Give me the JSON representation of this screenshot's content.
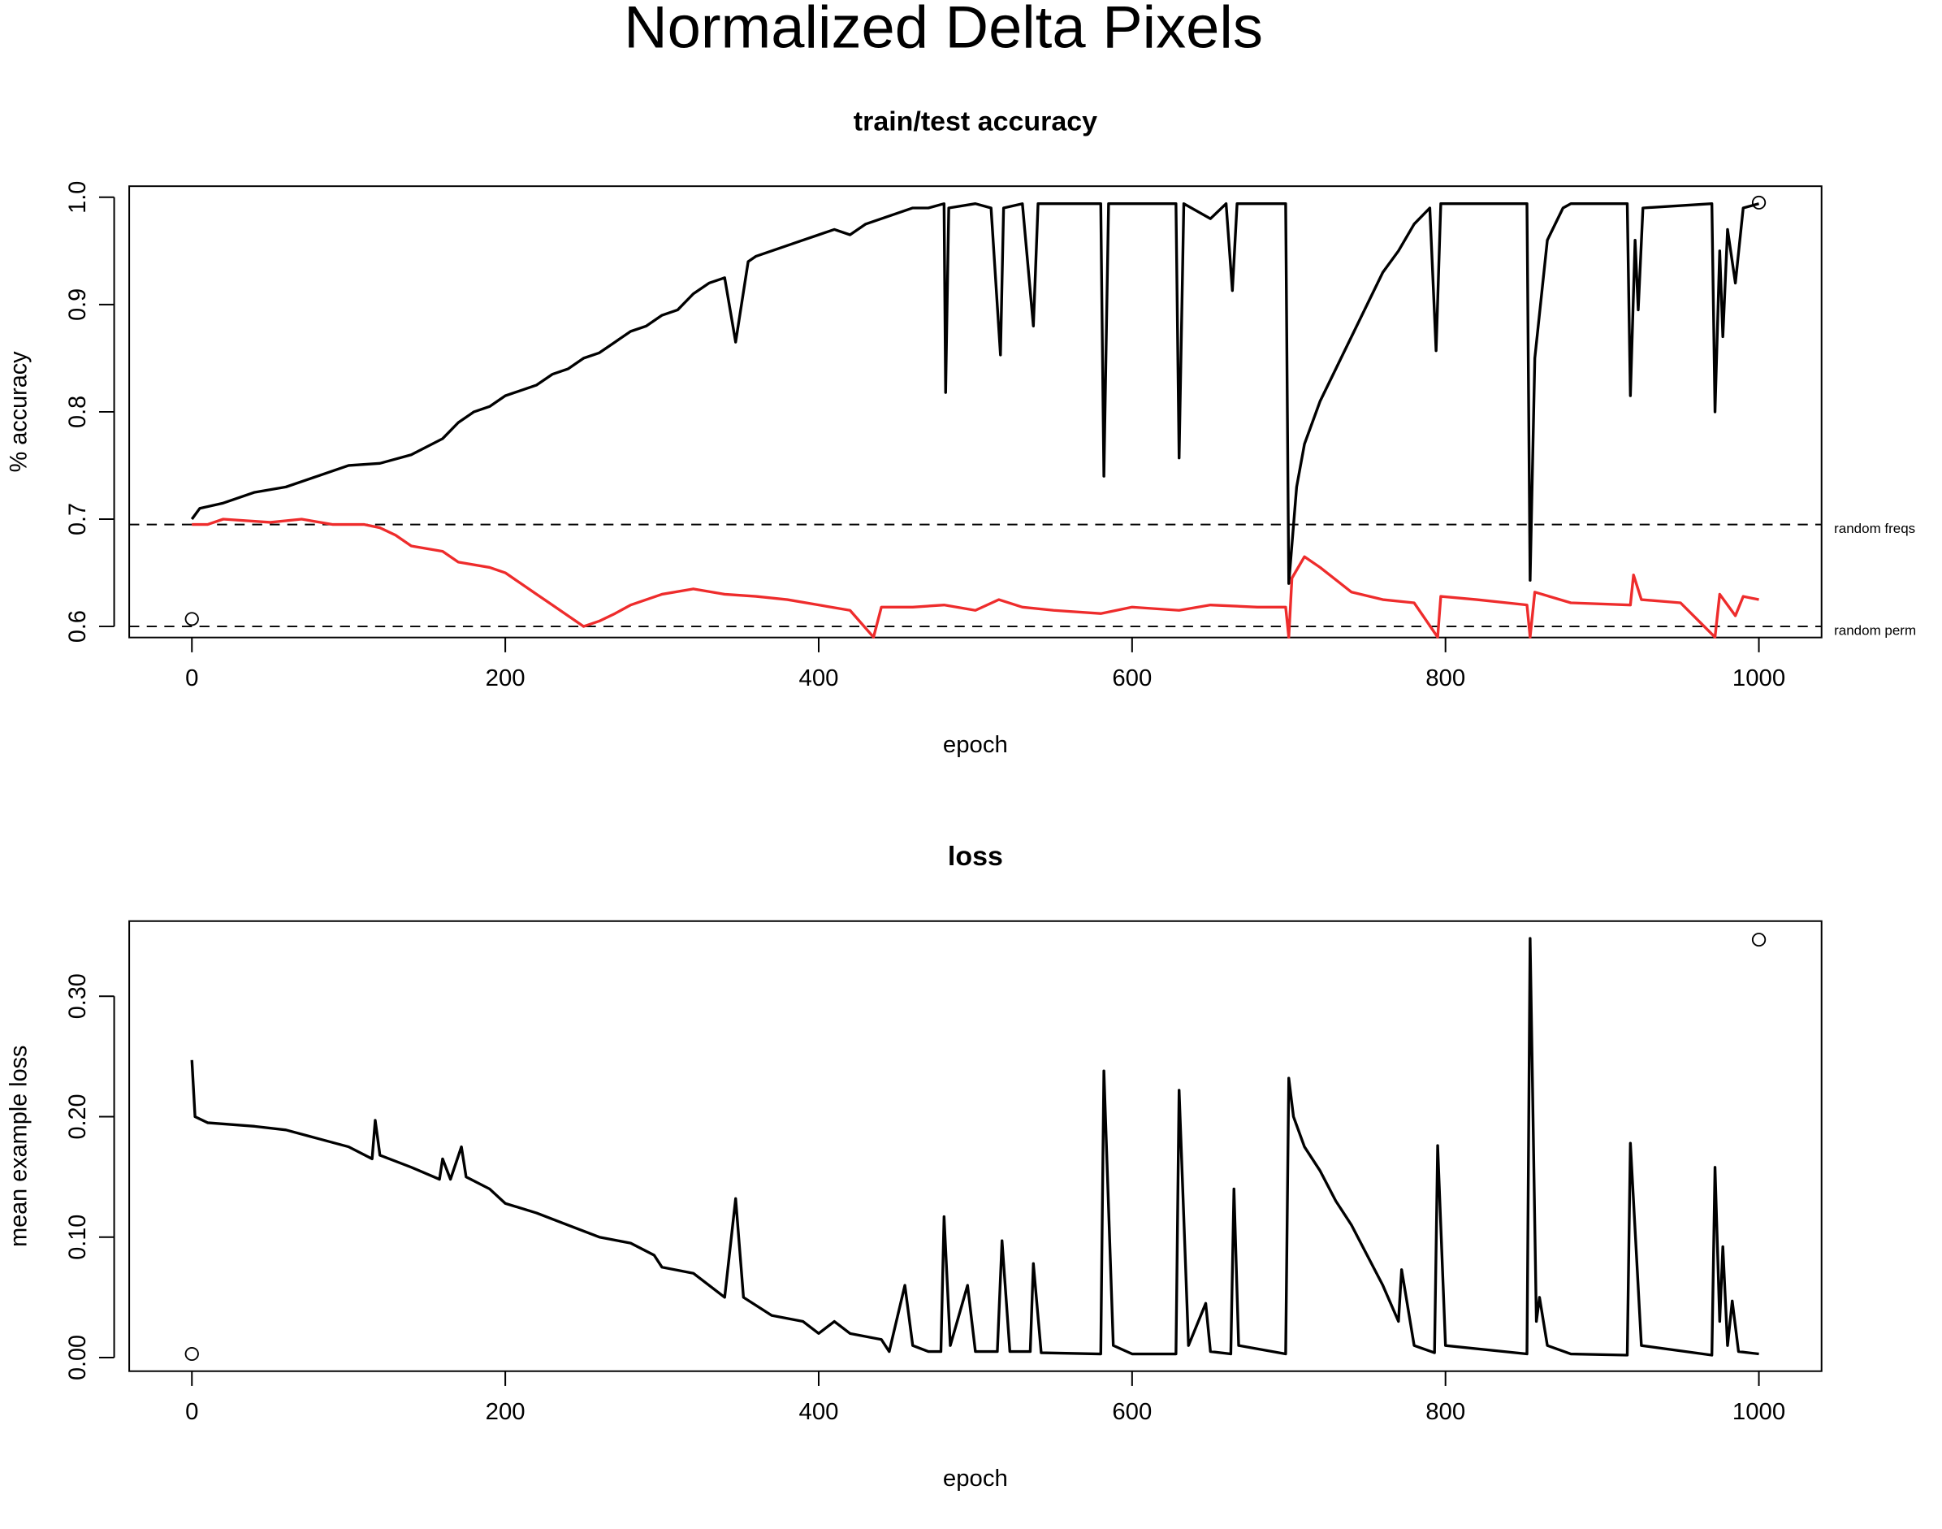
{
  "title": "Normalized Delta Pixels",
  "chart_data": [
    {
      "type": "line",
      "title": "train/test accuracy",
      "xlabel": "epoch",
      "ylabel": "% accuracy",
      "xlim": [
        -40,
        1040
      ],
      "ylim": [
        0.5897,
        1.0103
      ],
      "xticks": [
        0,
        200,
        400,
        600,
        800,
        1000
      ],
      "yticks": [
        0.6,
        0.7,
        0.8,
        0.9,
        {
          "value": 1.0,
          "label": "1.0"
        }
      ],
      "hlines": [
        {
          "value": 0.695,
          "label": "random freqs"
        },
        {
          "value": 0.6,
          "label": "random perm"
        }
      ],
      "points": {
        "x": [
          0,
          1000
        ],
        "y": [
          0.607,
          0.995
        ]
      },
      "series": [
        {
          "color": "#000000",
          "x": [
            0,
            5,
            20,
            40,
            60,
            80,
            100,
            120,
            140,
            160,
            170,
            180,
            190,
            200,
            210,
            220,
            230,
            240,
            250,
            260,
            270,
            280,
            290,
            300,
            310,
            320,
            330,
            340,
            347,
            355,
            360,
            370,
            380,
            390,
            400,
            410,
            420,
            430,
            440,
            450,
            460,
            470,
            480,
            481,
            483,
            500,
            510,
            516,
            518,
            530,
            537,
            540,
            580,
            582,
            585,
            628,
            630,
            633,
            650,
            660,
            664,
            667,
            698,
            700,
            705,
            710,
            720,
            730,
            740,
            750,
            760,
            770,
            780,
            790,
            794,
            797,
            852,
            854,
            857,
            865,
            875,
            880,
            916,
            918,
            921,
            923,
            926,
            970,
            972,
            975,
            977,
            980,
            985,
            990,
            1000
          ],
          "values": [
            0.7,
            0.71,
            0.715,
            0.725,
            0.73,
            0.74,
            0.75,
            0.752,
            0.76,
            0.775,
            0.79,
            0.8,
            0.805,
            0.815,
            0.82,
            0.825,
            0.835,
            0.84,
            0.85,
            0.855,
            0.865,
            0.875,
            0.88,
            0.89,
            0.895,
            0.91,
            0.92,
            0.925,
            0.865,
            0.94,
            0.945,
            0.95,
            0.955,
            0.96,
            0.965,
            0.97,
            0.965,
            0.975,
            0.98,
            0.985,
            0.99,
            0.99,
            0.994,
            0.818,
            0.99,
            0.994,
            0.99,
            0.853,
            0.99,
            0.994,
            0.88,
            0.994,
            0.994,
            0.74,
            0.994,
            0.994,
            0.757,
            0.994,
            0.98,
            0.994,
            0.913,
            0.994,
            0.994,
            0.64,
            0.73,
            0.77,
            0.81,
            0.84,
            0.87,
            0.9,
            0.93,
            0.95,
            0.975,
            0.99,
            0.857,
            0.994,
            0.994,
            0.643,
            0.85,
            0.96,
            0.99,
            0.994,
            0.994,
            0.815,
            0.96,
            0.895,
            0.99,
            0.994,
            0.8,
            0.95,
            0.87,
            0.97,
            0.92,
            0.99,
            0.994
          ]
        },
        {
          "color": "#ee2c2c",
          "x": [
            0,
            10,
            20,
            50,
            70,
            90,
            110,
            120,
            130,
            140,
            160,
            170,
            190,
            200,
            210,
            220,
            230,
            240,
            250,
            260,
            270,
            280,
            290,
            300,
            320,
            340,
            360,
            380,
            400,
            420,
            435,
            440,
            460,
            480,
            500,
            515,
            530,
            550,
            580,
            600,
            630,
            650,
            680,
            698,
            700,
            702,
            710,
            720,
            740,
            760,
            780,
            795,
            797,
            820,
            852,
            854,
            857,
            880,
            918,
            920,
            925,
            950,
            972,
            975,
            985,
            990,
            1000
          ],
          "values": [
            0.695,
            0.695,
            0.7,
            0.697,
            0.7,
            0.695,
            0.695,
            0.692,
            0.685,
            0.675,
            0.67,
            0.66,
            0.655,
            0.65,
            0.64,
            0.63,
            0.62,
            0.61,
            0.6,
            0.605,
            0.612,
            0.62,
            0.625,
            0.63,
            0.635,
            0.63,
            0.628,
            0.625,
            0.62,
            0.615,
            0.59,
            0.618,
            0.618,
            0.62,
            0.615,
            0.625,
            0.618,
            0.615,
            0.612,
            0.618,
            0.615,
            0.62,
            0.618,
            0.618,
            0.59,
            0.645,
            0.665,
            0.655,
            0.632,
            0.625,
            0.622,
            0.59,
            0.628,
            0.625,
            0.62,
            0.59,
            0.632,
            0.622,
            0.62,
            0.648,
            0.625,
            0.622,
            0.59,
            0.63,
            0.61,
            0.628,
            0.625
          ]
        }
      ]
    },
    {
      "type": "line",
      "title": "loss",
      "xlabel": "epoch",
      "ylabel": "mean example loss",
      "xlim": [
        -40,
        1040
      ],
      "ylim": [
        -0.0113,
        0.3624
      ],
      "xticks": [
        0,
        200,
        400,
        600,
        800,
        1000
      ],
      "yticks": [
        {
          "value": 0,
          "label": "0.00"
        },
        {
          "value": 0.1,
          "label": "0.10"
        },
        {
          "value": 0.2,
          "label": "0.20"
        },
        {
          "value": 0.3,
          "label": "0.30"
        }
      ],
      "hlines": [],
      "points": {
        "x": [
          0,
          1000
        ],
        "y": [
          0.003,
          0.347
        ]
      },
      "series": [
        {
          "color": "#000000",
          "x": [
            0,
            2,
            10,
            40,
            60,
            80,
            100,
            115,
            117,
            120,
            140,
            158,
            160,
            165,
            172,
            175,
            190,
            200,
            220,
            240,
            260,
            280,
            295,
            300,
            320,
            340,
            347,
            352,
            370,
            390,
            400,
            410,
            420,
            440,
            445,
            455,
            460,
            470,
            478,
            480,
            484,
            495,
            500,
            514,
            517,
            522,
            535,
            537,
            542,
            580,
            582,
            588,
            600,
            628,
            630,
            636,
            647,
            650,
            663,
            665,
            668,
            698,
            700,
            703,
            710,
            720,
            730,
            740,
            750,
            760,
            770,
            772,
            780,
            793,
            795,
            800,
            852,
            854,
            858,
            860,
            865,
            880,
            916,
            918,
            925,
            970,
            972,
            975,
            977,
            980,
            983,
            987,
            1000
          ],
          "values": [
            0.247,
            0.2,
            0.195,
            0.192,
            0.189,
            0.182,
            0.175,
            0.165,
            0.197,
            0.168,
            0.158,
            0.148,
            0.165,
            0.148,
            0.175,
            0.15,
            0.14,
            0.128,
            0.12,
            0.11,
            0.1,
            0.095,
            0.085,
            0.075,
            0.07,
            0.05,
            0.132,
            0.05,
            0.035,
            0.03,
            0.02,
            0.03,
            0.02,
            0.015,
            0.005,
            0.06,
            0.01,
            0.005,
            0.005,
            0.117,
            0.01,
            0.06,
            0.005,
            0.005,
            0.097,
            0.005,
            0.005,
            0.078,
            0.004,
            0.003,
            0.238,
            0.01,
            0.003,
            0.003,
            0.222,
            0.01,
            0.045,
            0.005,
            0.003,
            0.14,
            0.01,
            0.003,
            0.232,
            0.2,
            0.175,
            0.155,
            0.13,
            0.11,
            0.085,
            0.06,
            0.03,
            0.073,
            0.01,
            0.004,
            0.176,
            0.01,
            0.003,
            0.348,
            0.03,
            0.05,
            0.01,
            0.003,
            0.002,
            0.178,
            0.01,
            0.002,
            0.158,
            0.03,
            0.092,
            0.01,
            0.047,
            0.005,
            0.003
          ]
        }
      ]
    }
  ]
}
